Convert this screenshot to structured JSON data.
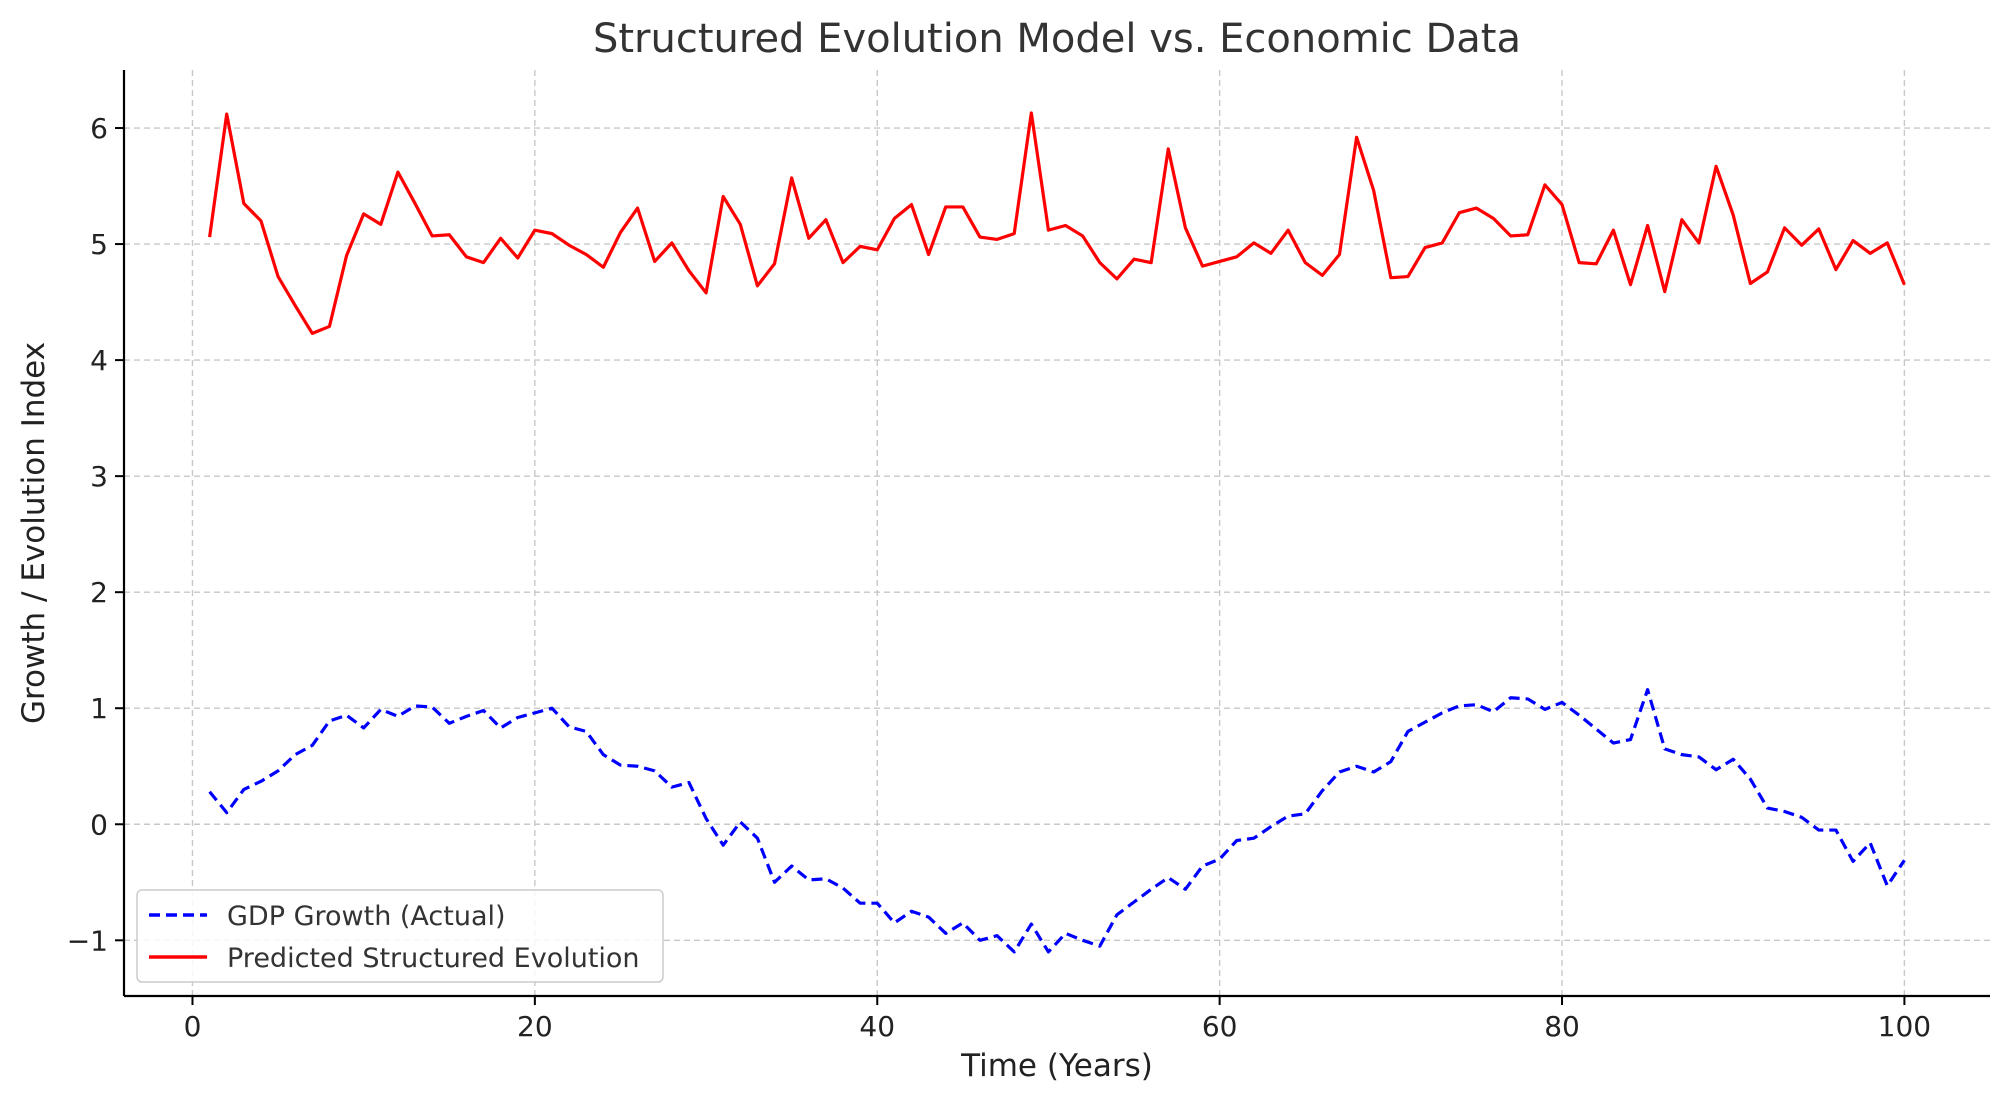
{
  "chart_data": {
    "type": "line",
    "title": "Structured Evolution Model vs. Economic Data",
    "xlabel": "Time (Years)",
    "ylabel": "Growth / Evolution Index",
    "xlim": [
      -4,
      105
    ],
    "ylim": [
      -1.48,
      6.5
    ],
    "x_ticks": [
      0,
      20,
      40,
      60,
      80,
      100
    ],
    "y_ticks": [
      -1,
      0,
      1,
      2,
      3,
      4,
      5,
      6
    ],
    "x_tick_labels": [
      "0",
      "20",
      "40",
      "60",
      "80",
      "100"
    ],
    "y_tick_labels": [
      "−1",
      "0",
      "1",
      "2",
      "3",
      "4",
      "5",
      "6"
    ],
    "grid": true,
    "legend_position": "lower-left",
    "x": [
      1,
      2,
      3,
      4,
      5,
      6,
      7,
      8,
      9,
      10,
      11,
      12,
      13,
      14,
      15,
      16,
      17,
      18,
      19,
      20,
      21,
      22,
      23,
      24,
      25,
      26,
      27,
      28,
      29,
      30,
      31,
      32,
      33,
      34,
      35,
      36,
      37,
      38,
      39,
      40,
      41,
      42,
      43,
      44,
      45,
      46,
      47,
      48,
      49,
      50,
      51,
      52,
      53,
      54,
      55,
      56,
      57,
      58,
      59,
      60,
      61,
      62,
      63,
      64,
      65,
      66,
      67,
      68,
      69,
      70,
      71,
      72,
      73,
      74,
      75,
      76,
      77,
      78,
      79,
      80,
      81,
      82,
      83,
      84,
      85,
      86,
      87,
      88,
      89,
      90,
      91,
      92,
      93,
      94,
      95,
      96,
      97,
      98,
      99,
      100
    ],
    "series": [
      {
        "name": "GDP Growth (Actual)",
        "color": "#0000ff",
        "style": "dashed",
        "values": [
          0.28,
          0.1,
          0.3,
          0.37,
          0.46,
          0.6,
          0.68,
          0.89,
          0.94,
          0.83,
          0.99,
          0.93,
          1.02,
          1.01,
          0.87,
          0.93,
          0.98,
          0.83,
          0.92,
          0.96,
          1.0,
          0.84,
          0.8,
          0.6,
          0.51,
          0.5,
          0.46,
          0.32,
          0.36,
          0.05,
          -0.18,
          0.02,
          -0.12,
          -0.5,
          -0.36,
          -0.48,
          -0.47,
          -0.55,
          -0.68,
          -0.68,
          -0.85,
          -0.75,
          -0.8,
          -0.94,
          -0.85,
          -1.0,
          -0.96,
          -1.1,
          -0.86,
          -1.1,
          -0.94,
          -1.0,
          -1.05,
          -0.78,
          -0.67,
          -0.56,
          -0.46,
          -0.56,
          -0.36,
          -0.3,
          -0.14,
          -0.12,
          -0.02,
          0.07,
          0.09,
          0.29,
          0.45,
          0.5,
          0.45,
          0.54,
          0.8,
          0.88,
          0.96,
          1.02,
          1.03,
          0.97,
          1.09,
          1.08,
          0.99,
          1.05,
          0.94,
          0.82,
          0.7,
          0.73,
          1.16,
          0.65,
          0.6,
          0.58,
          0.47,
          0.56,
          0.39,
          0.14,
          0.11,
          0.06,
          -0.05,
          -0.05,
          -0.32,
          -0.16,
          -0.53,
          -0.31
        ]
      },
      {
        "name": "Predicted Structured Evolution",
        "color": "#ff0000",
        "style": "solid",
        "values": [
          5.06,
          6.12,
          5.35,
          5.2,
          4.72,
          4.47,
          4.23,
          4.29,
          4.9,
          5.26,
          5.17,
          5.62,
          5.35,
          5.07,
          5.08,
          4.89,
          4.84,
          5.05,
          4.88,
          5.12,
          5.09,
          4.99,
          4.91,
          4.8,
          5.1,
          5.31,
          4.85,
          5.01,
          4.77,
          4.58,
          5.41,
          5.17,
          4.64,
          4.83,
          5.57,
          5.05,
          5.21,
          4.84,
          4.98,
          4.95,
          5.22,
          5.34,
          4.91,
          5.32,
          5.32,
          5.06,
          5.04,
          5.09,
          6.13,
          5.12,
          5.16,
          5.07,
          4.84,
          4.7,
          4.87,
          4.84,
          5.82,
          5.14,
          4.81,
          4.85,
          4.89,
          5.01,
          4.92,
          5.12,
          4.84,
          4.73,
          4.91,
          5.92,
          5.46,
          4.71,
          4.72,
          4.97,
          5.01,
          5.27,
          5.31,
          5.22,
          5.07,
          5.08,
          5.51,
          5.34,
          4.84,
          4.83,
          5.12,
          4.65,
          5.16,
          4.59,
          5.21,
          5.01,
          5.67,
          5.25,
          4.66,
          4.76,
          5.14,
          4.99,
          5.13,
          4.78,
          5.03,
          4.92,
          5.01,
          4.65
        ]
      }
    ]
  }
}
